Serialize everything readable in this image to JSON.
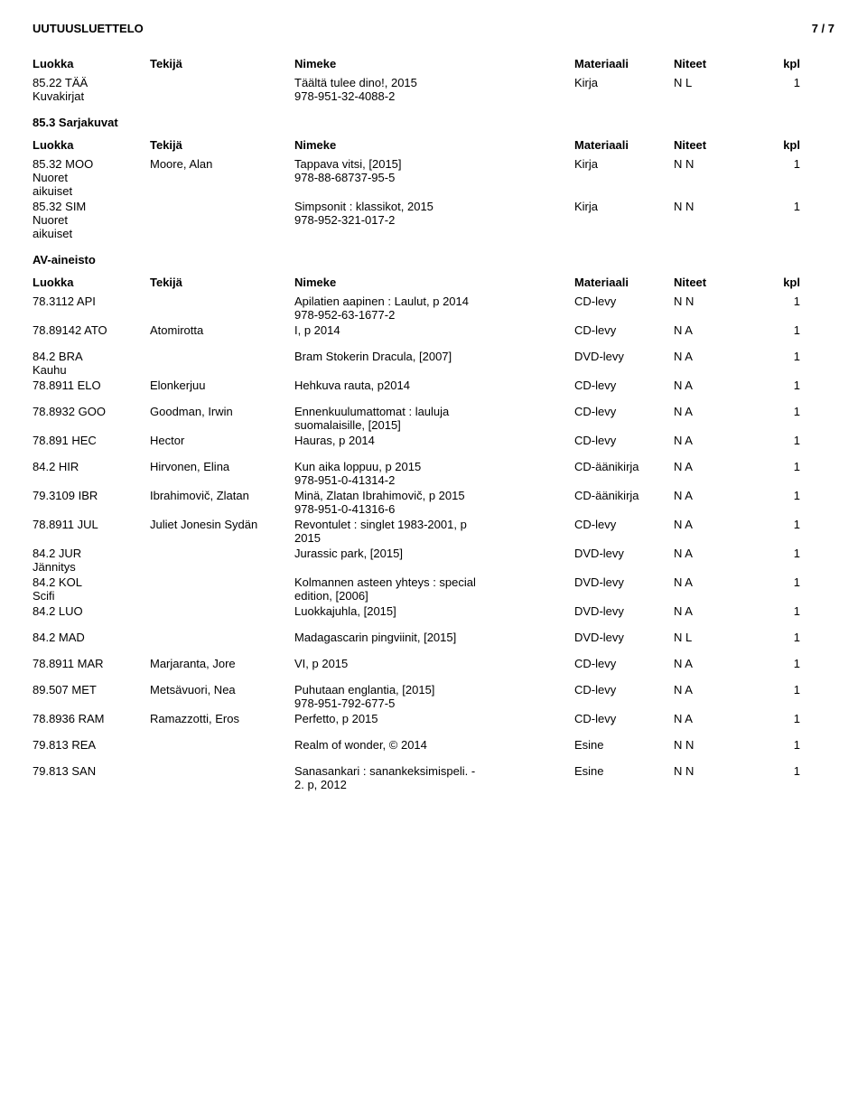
{
  "header": {
    "title": "UUTUUSLUETTELO",
    "page": "7 / 7"
  },
  "cols": {
    "luokka": "Luokka",
    "tekija": "Tekijä",
    "nimeke": "Nimeke",
    "materiaali": "Materiaali",
    "niteet": "Niteet",
    "kpl": "kpl"
  },
  "sections": [
    {
      "showHeader": true,
      "rows": [
        {
          "luokka": "85.22 TÄÄ\nKuvakirjat",
          "tekija": "",
          "nimeke": "Täältä tulee dino!, 2015\n978-951-32-4088-2",
          "materiaali": "Kirja",
          "niteet": "N L",
          "kpl": "1"
        }
      ]
    },
    {
      "title": "85.3 Sarjakuvat",
      "showHeader": true,
      "rows": [
        {
          "luokka": "85.32 MOO\nNuoret\naikuiset",
          "tekija": "Moore, Alan",
          "nimeke": "Tappava vitsi, [2015]\n978-88-68737-95-5",
          "materiaali": "Kirja",
          "niteet": "N N",
          "kpl": "1"
        },
        {
          "luokka": "85.32 SIM\nNuoret\naikuiset",
          "tekija": "",
          "nimeke": "Simpsonit : klassikot, 2015\n978-952-321-017-2",
          "materiaali": "Kirja",
          "niteet": "N N",
          "kpl": "1"
        }
      ]
    },
    {
      "title": "AV-aineisto",
      "showHeader": true,
      "rows": [
        {
          "luokka": "78.3112 API",
          "tekija": "",
          "nimeke": "Apilatien aapinen : Laulut, p 2014\n978-952-63-1677-2",
          "materiaali": "CD-levy",
          "niteet": "N N",
          "kpl": "1"
        },
        {
          "luokka": "78.89142 ATO",
          "tekija": "Atomirotta",
          "nimeke": "I, p 2014",
          "materiaali": "CD-levy",
          "niteet": "N A",
          "kpl": "1"
        },
        {
          "gap": true
        },
        {
          "luokka": "84.2 BRA\nKauhu",
          "tekija": "",
          "nimeke": "Bram Stokerin Dracula, [2007]",
          "materiaali": "DVD-levy",
          "niteet": "N A",
          "kpl": "1"
        },
        {
          "luokka": "78.8911 ELO",
          "tekija": "Elonkerjuu",
          "nimeke": "Hehkuva rauta, p2014",
          "materiaali": "CD-levy",
          "niteet": "N A",
          "kpl": "1"
        },
        {
          "gap": true
        },
        {
          "luokka": "78.8932 GOO",
          "tekija": "Goodman, Irwin",
          "nimeke": "Ennenkuulumattomat : lauluja\nsuomalaisille, [2015]",
          "materiaali": "CD-levy",
          "niteet": "N A",
          "kpl": "1"
        },
        {
          "luokka": "78.891 HEC",
          "tekija": "Hector",
          "nimeke": "Hauras, p 2014",
          "materiaali": "CD-levy",
          "niteet": "N A",
          "kpl": "1"
        },
        {
          "gap": true
        },
        {
          "luokka": "84.2 HIR",
          "tekija": "Hirvonen, Elina",
          "nimeke": "Kun aika loppuu, p 2015\n978-951-0-41314-2",
          "materiaali": "CD-äänikirja",
          "niteet": "N A",
          "kpl": "1"
        },
        {
          "luokka": "79.3109 IBR",
          "tekija": "Ibrahimovič, Zlatan",
          "nimeke": "Minä, Zlatan Ibrahimovič, p 2015\n978-951-0-41316-6",
          "materiaali": "CD-äänikirja",
          "niteet": "N A",
          "kpl": "1"
        },
        {
          "luokka": "78.8911 JUL",
          "tekija": "Juliet Jonesin Sydän",
          "nimeke": "Revontulet : singlet 1983-2001, p\n2015",
          "materiaali": "CD-levy",
          "niteet": "N A",
          "kpl": "1"
        },
        {
          "luokka": "84.2 JUR\nJännitys",
          "tekija": "",
          "nimeke": "Jurassic park, [2015]",
          "materiaali": "DVD-levy",
          "niteet": "N A",
          "kpl": "1"
        },
        {
          "luokka": "84.2 KOL\nScifi",
          "tekija": "",
          "nimeke": "Kolmannen asteen yhteys : special\nedition, [2006]",
          "materiaali": "DVD-levy",
          "niteet": "N A",
          "kpl": "1"
        },
        {
          "luokka": "84.2 LUO",
          "tekija": "",
          "nimeke": "Luokkajuhla, [2015]",
          "materiaali": "DVD-levy",
          "niteet": "N A",
          "kpl": "1"
        },
        {
          "gap": true
        },
        {
          "luokka": "84.2 MAD",
          "tekija": "",
          "nimeke": "Madagascarin pingviinit, [2015]",
          "materiaali": "DVD-levy",
          "niteet": "N L",
          "kpl": "1"
        },
        {
          "gap": true
        },
        {
          "luokka": "78.8911 MAR",
          "tekija": "Marjaranta, Jore",
          "nimeke": "VI, p 2015",
          "materiaali": "CD-levy",
          "niteet": "N A",
          "kpl": "1"
        },
        {
          "gap": true
        },
        {
          "luokka": "89.507 MET",
          "tekija": "Metsävuori, Nea",
          "nimeke": "Puhutaan englantia, [2015]\n978-951-792-677-5",
          "materiaali": "CD-levy",
          "niteet": "N A",
          "kpl": "1"
        },
        {
          "luokka": "78.8936 RAM",
          "tekija": "Ramazzotti, Eros",
          "nimeke": "Perfetto, p 2015",
          "materiaali": "CD-levy",
          "niteet": "N A",
          "kpl": "1"
        },
        {
          "gap": true
        },
        {
          "luokka": "79.813 REA",
          "tekija": "",
          "nimeke": "Realm of wonder, © 2014",
          "materiaali": "Esine",
          "niteet": "N N",
          "kpl": "1"
        },
        {
          "gap": true
        },
        {
          "luokka": "79.813 SAN",
          "tekija": "",
          "nimeke": "Sanasankari : sanankeksimispeli. -\n2. p, 2012",
          "materiaali": "Esine",
          "niteet": "N N",
          "kpl": "1"
        }
      ]
    }
  ]
}
